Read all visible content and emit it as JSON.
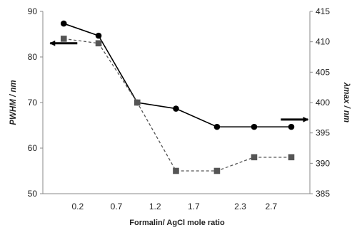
{
  "chart_data": {
    "type": "line",
    "title": "",
    "xlabel": "Formalin/ AgCl mole ratio",
    "ylabel_left": "PWHM / nm",
    "ylabel_right": "λmax / nm",
    "x_tick_labels": [
      "0.2",
      "0.7",
      "1.2",
      "1.7",
      "2.3",
      "2.7"
    ],
    "x_tick_values": [
      0.2,
      0.7,
      1.2,
      1.7,
      2.3,
      2.7
    ],
    "xlim": [
      -0.25,
      3.2
    ],
    "y_left": {
      "ylim": [
        50,
        90
      ],
      "ticks": [
        "50",
        "60",
        "70",
        "80",
        "90"
      ],
      "tick_values": [
        50,
        60,
        70,
        80,
        90
      ]
    },
    "y_right": {
      "ylim": [
        385,
        415
      ],
      "ticks": [
        "385",
        "390",
        "395",
        "400",
        "405",
        "410",
        "415"
      ],
      "tick_values": [
        385,
        390,
        395,
        400,
        405,
        410,
        415
      ]
    },
    "grid": false,
    "legend": "none",
    "series": [
      {
        "axis": "right",
        "style": "solid",
        "marker": "circle",
        "color": "#000000",
        "x": [
          0.02,
          0.47,
          0.97,
          1.47,
          2.0,
          2.48,
          2.96
        ],
        "values": [
          413.0,
          411.0,
          400.0,
          399.0,
          396.0,
          396.0,
          396.0
        ]
      },
      {
        "axis": "left",
        "style": "dashed",
        "marker": "square",
        "color": "#555555",
        "x": [
          0.02,
          0.47,
          0.97,
          1.47,
          2.0,
          2.48,
          2.96
        ],
        "values": [
          84.0,
          83.0,
          70.0,
          55.0,
          55.0,
          58.0,
          58.0
        ]
      }
    ],
    "annotations": [
      {
        "type": "arrow",
        "direction": "left",
        "refers_to": "left-axis",
        "x": 0.02,
        "y": 83
      },
      {
        "type": "arrow",
        "direction": "right",
        "refers_to": "right-axis",
        "x": 3.0,
        "y": 397.2
      }
    ]
  }
}
